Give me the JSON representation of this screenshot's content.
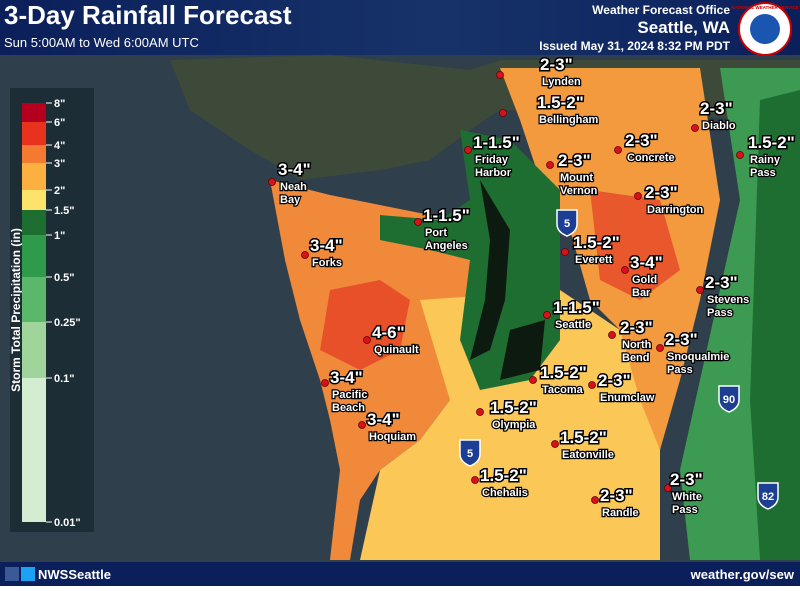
{
  "header": {
    "title": "3-Day Rainfall  Forecast",
    "subtitle": "Sun 5:00AM to Wed 6:00AM UTC",
    "office": "Weather Forecast Office",
    "location": "Seattle, WA",
    "issued": "Issued May 31, 2024 8:32 PM PDT",
    "logo": "NATIONAL WEATHER SERVICE"
  },
  "legend": {
    "title": "Storm Total Precipitation (in)",
    "labels": [
      "8\"",
      "6\"",
      "4\"",
      "3\"",
      "2\"",
      "1.5\"",
      "1\"",
      "0.5\"",
      "0.25\"",
      "0.1\"",
      "0.01\""
    ]
  },
  "locations": [
    {
      "name": [
        "Lynden"
      ],
      "amount": "2-3\""
    },
    {
      "name": [
        "Bellingham"
      ],
      "amount": "1.5-2\""
    },
    {
      "name": [
        "Diablo"
      ],
      "amount": "2-3\""
    },
    {
      "name": [
        "Rainy",
        "Pass"
      ],
      "amount": "1.5-2\""
    },
    {
      "name": [
        "Friday",
        "Harbor"
      ],
      "amount": "1-1.5\""
    },
    {
      "name": [
        "Concrete"
      ],
      "amount": "2-3\""
    },
    {
      "name": [
        "Mount",
        "Vernon"
      ],
      "amount": "2-3\""
    },
    {
      "name": [
        "Darrington"
      ],
      "amount": "2-3\""
    },
    {
      "name": [
        "Neah",
        "Bay"
      ],
      "amount": "3-4\""
    },
    {
      "name": [
        "Port",
        "Angeles"
      ],
      "amount": "1-1.5\""
    },
    {
      "name": [
        "Forks"
      ],
      "amount": "3-4\""
    },
    {
      "name": [
        "Everett"
      ],
      "amount": "1.5-2\""
    },
    {
      "name": [
        "Gold",
        "Bar"
      ],
      "amount": "3-4\""
    },
    {
      "name": [
        "Stevens",
        "Pass"
      ],
      "amount": "2-3\""
    },
    {
      "name": [
        "Seattle"
      ],
      "amount": "1-1.5\""
    },
    {
      "name": [
        "Quinault"
      ],
      "amount": "4-6\""
    },
    {
      "name": [
        "North",
        "Bend"
      ],
      "amount": "2-3\""
    },
    {
      "name": [
        "Snoqualmie",
        "Pass"
      ],
      "amount": "2-3\""
    },
    {
      "name": [
        "Pacific",
        "Beach"
      ],
      "amount": "3-4\""
    },
    {
      "name": [
        "Tacoma"
      ],
      "amount": "1.5-2\""
    },
    {
      "name": [
        "Enumclaw"
      ],
      "amount": "2-3\""
    },
    {
      "name": [
        "Hoquiam"
      ],
      "amount": "3-4\""
    },
    {
      "name": [
        "Olympia"
      ],
      "amount": "1.5-2\""
    },
    {
      "name": [
        "Eatonville"
      ],
      "amount": "1.5-2\""
    },
    {
      "name": [
        "Chehalis"
      ],
      "amount": "1.5-2\""
    },
    {
      "name": [
        "Randle"
      ],
      "amount": "2-3\""
    },
    {
      "name": [
        "White",
        "Pass"
      ],
      "amount": "2-3\""
    }
  ],
  "highways": [
    "5",
    "5",
    "90",
    "82"
  ],
  "footer": {
    "social": "NWSSeattle",
    "url": "weather.gov/sew"
  }
}
